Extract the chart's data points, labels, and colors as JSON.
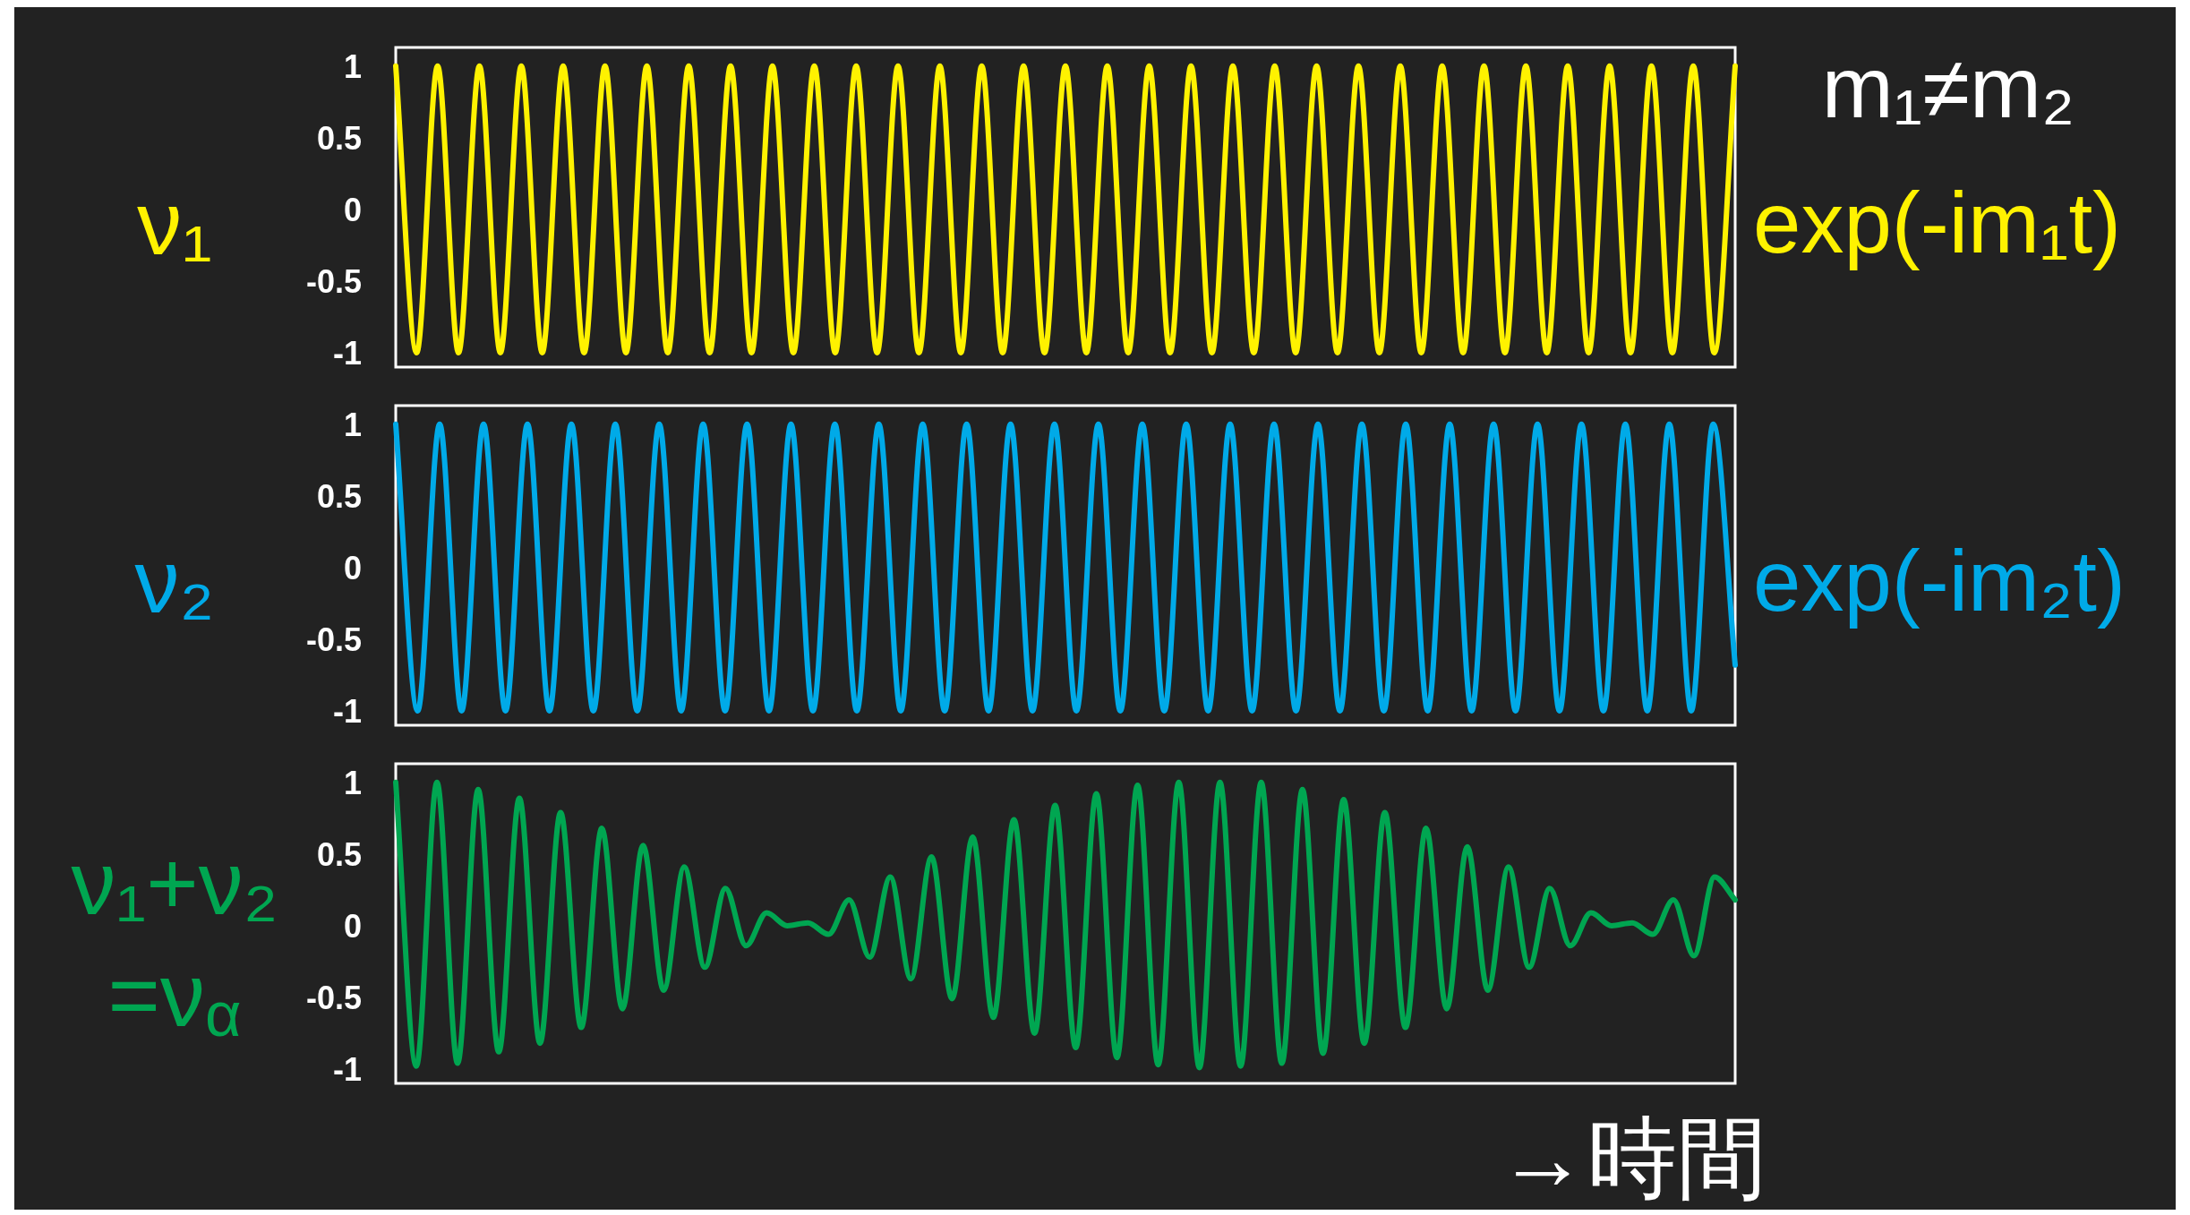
{
  "chart_data": [
    {
      "type": "line",
      "ylabel": "ν₁",
      "annotations": [
        "m₁≠m₂"
      ],
      "categories": [
        null,
        null,
        null,
        null,
        null,
        null,
        null,
        null,
        null,
        null,
        null,
        null,
        null,
        null,
        null,
        null,
        null,
        null,
        null,
        null,
        null,
        null,
        null,
        null,
        null,
        null,
        null,
        null,
        null,
        null,
        null,
        null,
        null,
        null,
        null,
        null,
        null,
        null,
        null,
        null,
        null,
        null,
        null,
        null,
        null,
        null,
        null,
        null,
        null,
        null,
        null,
        null,
        null,
        null,
        null,
        null,
        null,
        null,
        null,
        null,
        null,
        null,
        null,
        null,
        null
      ],
      "series": [
        {
          "name": "exp(-im₁t)",
          "color": "#fff200",
          "values": [
            1,
            -1,
            1,
            -1,
            1,
            -1,
            1,
            -1,
            1,
            -1,
            1,
            -1,
            1,
            -1,
            1,
            -1,
            1,
            -1,
            1,
            -1,
            1,
            -1,
            1,
            -1,
            1,
            -1,
            1,
            -1,
            1,
            -1,
            1,
            -1,
            1,
            -1,
            1,
            -1,
            1,
            -1,
            1,
            -1,
            1,
            -1,
            1,
            -1,
            1,
            -1,
            1,
            -1,
            1,
            -1,
            1,
            -1,
            1,
            -1,
            1,
            -1,
            1,
            -1,
            1,
            -1,
            1,
            -1,
            1,
            -1,
            1
          ]
        }
      ],
      "ylim": [
        -1.1,
        1.13
      ],
      "yticks": [
        -1,
        -0.5,
        0,
        0.5,
        1
      ],
      "tick_labels": "y"
    },
    {
      "type": "line",
      "ylabel": "ν₂",
      "categories": [
        null,
        null,
        null,
        null,
        null,
        null,
        null,
        null,
        null,
        null,
        null,
        null,
        null,
        null,
        null,
        null,
        null,
        null,
        null,
        null,
        null,
        null,
        null,
        null,
        null,
        null,
        null,
        null,
        null,
        null,
        null,
        null,
        null,
        null,
        null,
        null,
        null,
        null,
        null,
        null,
        null,
        null,
        null,
        null,
        null,
        null,
        null,
        null,
        null,
        null,
        null,
        null,
        null,
        null,
        null,
        null,
        null,
        null,
        null,
        null,
        null,
        null
      ],
      "series": [
        {
          "name": "exp(-im₂t)",
          "color": "#00aae8",
          "values": [
            1,
            -1,
            1,
            -1,
            1,
            -1,
            1,
            -1,
            1,
            -1,
            1,
            -1,
            1,
            -1,
            1,
            -1,
            1,
            -1,
            1,
            -1,
            1,
            -1,
            1,
            -1,
            1,
            -1,
            1,
            -1,
            1,
            -1,
            1,
            -1,
            1,
            -1,
            1,
            -1,
            1,
            -1,
            1,
            -1,
            1,
            -1,
            1,
            -1,
            1,
            -1,
            1,
            -1,
            1,
            -1,
            1,
            -1,
            1,
            -1,
            1,
            -1,
            1,
            -1,
            1,
            -1,
            1,
            -0.68
          ]
        }
      ],
      "ylim": [
        -1.1,
        1.13
      ],
      "yticks": [
        -1,
        -0.5,
        0,
        0.5,
        1
      ],
      "tick_labels": "y"
    },
    {
      "type": "line",
      "ylabel": "ν₁+ν₂\n=ν$_{α}$",
      "xlabel": "→時間",
      "categories": [
        null,
        null,
        null,
        null,
        null,
        null,
        null,
        null,
        null,
        null,
        null,
        null,
        null,
        null,
        null,
        null,
        null,
        null,
        null,
        null,
        null,
        null,
        null,
        null,
        null,
        null,
        null,
        null,
        null,
        null,
        null,
        null,
        null,
        null,
        null,
        null,
        null,
        null,
        null,
        null,
        null,
        null,
        null,
        null,
        null,
        null,
        null,
        null,
        null,
        null,
        null,
        null,
        null,
        null,
        null,
        null,
        null,
        null,
        null,
        null,
        null,
        null,
        null,
        null,
        null,
        null
      ],
      "series": [
        {
          "color": "#00a651",
          "values": [
            1,
            -0.98,
            1,
            -0.96,
            0.95,
            -0.88,
            0.89,
            -0.82,
            0.79,
            -0.71,
            0.68,
            -0.58,
            0.56,
            -0.45,
            0.41,
            -0.29,
            0.26,
            -0.14,
            0.09,
            0,
            0.02,
            -0.06,
            0.18,
            -0.22,
            0.34,
            -0.37,
            0.48,
            -0.51,
            0.62,
            -0.64,
            0.74,
            -0.75,
            0.84,
            -0.85,
            0.92,
            -0.92,
            0.98,
            -0.97,
            1,
            -0.99,
            1,
            -0.98,
            1,
            -0.96,
            0.95,
            -0.89,
            0.88,
            -0.82,
            0.79,
            -0.71,
            0.68,
            -0.58,
            0.55,
            -0.45,
            0.41,
            -0.29,
            0.26,
            -0.14,
            0.09,
            0,
            0.02,
            -0.06,
            0.18,
            -0.21,
            0.34,
            0.18
          ]
        }
      ],
      "ylim": [
        -1.1,
        1.13
      ],
      "yticks": [
        -1,
        -0.5,
        0,
        0.5,
        1
      ],
      "tick_labels": "y"
    }
  ]
}
